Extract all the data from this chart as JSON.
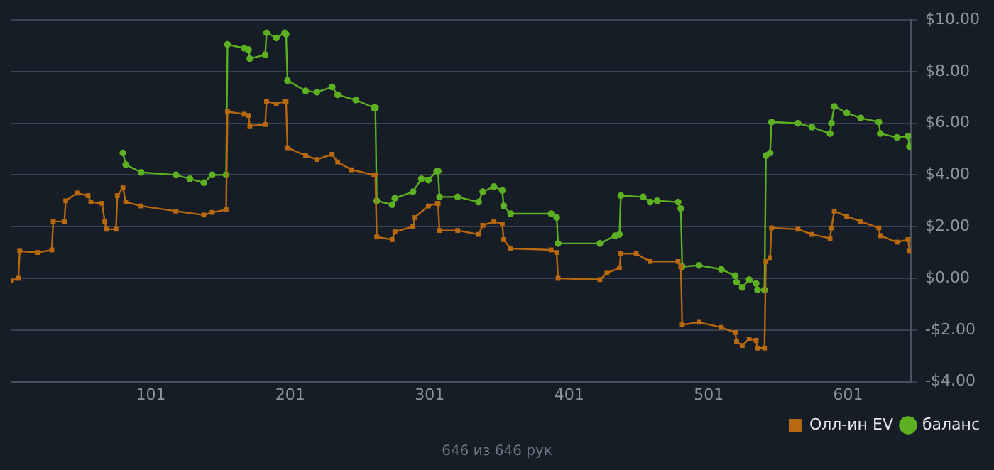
{
  "chart_data": {
    "type": "line",
    "xlim": [
      1,
      646
    ],
    "xticks": [
      101,
      201,
      301,
      401,
      501,
      601
    ],
    "ylim": [
      -4,
      10
    ],
    "yticks": [
      {
        "value": -4,
        "label": "-$4.00"
      },
      {
        "value": -2,
        "label": "-$2.00"
      },
      {
        "value": 0,
        "label": "$0.00"
      },
      {
        "value": 2,
        "label": "$2.00"
      },
      {
        "value": 4,
        "label": "$4.00"
      },
      {
        "value": 6,
        "label": "$6.00"
      },
      {
        "value": 8,
        "label": "$8.00"
      },
      {
        "value": 10,
        "label": "$10.00"
      }
    ],
    "grid": "y",
    "legend": "bottom right",
    "line_style": "solid",
    "annotations": [
      "646 из 646 рук"
    ],
    "series": [
      {
        "name": "Олл-ин EV",
        "color": "#b8680e",
        "marker": "square",
        "x": [
          1,
          6,
          7,
          20,
          30,
          31,
          39,
          40,
          48,
          56,
          58,
          66,
          68,
          69,
          76,
          77,
          81,
          83,
          94,
          119,
          139,
          145,
          155,
          156,
          168,
          171,
          172,
          183,
          184,
          191,
          197,
          198,
          199,
          212,
          220,
          231,
          235,
          245,
          261,
          262,
          263,
          274,
          276,
          289,
          290,
          300,
          306,
          307,
          308,
          321,
          336,
          339,
          347,
          353,
          354,
          359,
          388,
          392,
          393,
          423,
          428,
          437,
          438,
          449,
          459,
          479,
          481,
          482,
          494,
          510,
          520,
          521,
          525,
          530,
          535,
          536,
          541,
          542,
          545,
          546,
          565,
          575,
          588,
          589,
          591,
          600,
          610,
          623,
          624,
          636,
          644,
          645,
          646
        ],
        "values": [
          -0.1,
          0.0,
          1.05,
          1.0,
          1.1,
          2.2,
          2.2,
          3.0,
          3.3,
          3.2,
          2.95,
          2.9,
          2.2,
          1.9,
          1.9,
          3.2,
          3.5,
          2.95,
          2.8,
          2.6,
          2.45,
          2.55,
          2.65,
          6.45,
          6.35,
          6.3,
          5.9,
          5.95,
          6.85,
          6.75,
          6.85,
          6.85,
          5.05,
          4.75,
          4.6,
          4.8,
          4.5,
          4.2,
          4.0,
          4.0,
          1.6,
          1.5,
          1.8,
          2.0,
          2.35,
          2.8,
          2.9,
          2.9,
          1.85,
          1.85,
          1.7,
          2.05,
          2.2,
          2.1,
          1.5,
          1.15,
          1.1,
          1.0,
          0.0,
          -0.05,
          0.2,
          0.4,
          0.95,
          0.95,
          0.65,
          0.65,
          0.45,
          -1.8,
          -1.7,
          -1.9,
          -2.1,
          -2.45,
          -2.6,
          -2.35,
          -2.4,
          -2.7,
          -2.7,
          0.65,
          0.8,
          1.95,
          1.9,
          1.7,
          1.55,
          1.95,
          2.6,
          2.4,
          2.2,
          1.95,
          1.65,
          1.4,
          1.5,
          1.05,
          1.05
        ]
      },
      {
        "name": "баланс",
        "color": "#5cb021",
        "marker": "circle",
        "x": [
          81,
          83,
          94,
          119,
          129,
          139,
          145,
          155,
          156,
          168,
          171,
          172,
          183,
          184,
          191,
          197,
          198,
          199,
          212,
          220,
          231,
          235,
          248,
          261,
          262,
          263,
          274,
          276,
          289,
          295,
          300,
          306,
          307,
          308,
          321,
          336,
          339,
          347,
          353,
          354,
          359,
          388,
          392,
          393,
          423,
          434,
          437,
          438,
          454,
          459,
          464,
          479,
          481,
          482,
          494,
          510,
          520,
          521,
          525,
          530,
          535,
          536,
          541,
          542,
          545,
          546,
          565,
          575,
          588,
          589,
          591,
          600,
          610,
          623,
          624,
          636,
          644,
          645,
          646
        ],
        "values": [
          4.85,
          4.4,
          4.1,
          4.0,
          3.85,
          3.7,
          4.0,
          4.0,
          9.05,
          8.9,
          8.85,
          8.5,
          8.65,
          9.5,
          9.3,
          9.5,
          9.45,
          7.65,
          7.25,
          7.2,
          7.4,
          7.1,
          6.9,
          6.6,
          6.6,
          3.0,
          2.85,
          3.1,
          3.35,
          3.85,
          3.8,
          4.15,
          4.15,
          3.15,
          3.15,
          2.95,
          3.35,
          3.55,
          3.4,
          2.8,
          2.5,
          2.5,
          2.35,
          1.35,
          1.35,
          1.65,
          1.7,
          3.2,
          3.15,
          2.95,
          3.0,
          2.95,
          2.7,
          0.45,
          0.5,
          0.35,
          0.1,
          -0.15,
          -0.35,
          -0.05,
          -0.2,
          -0.45,
          -0.45,
          4.75,
          4.85,
          6.05,
          6.0,
          5.85,
          5.6,
          6.0,
          6.65,
          6.4,
          6.2,
          6.05,
          5.6,
          5.45,
          5.5,
          5.1,
          5.1
        ]
      }
    ]
  }
}
